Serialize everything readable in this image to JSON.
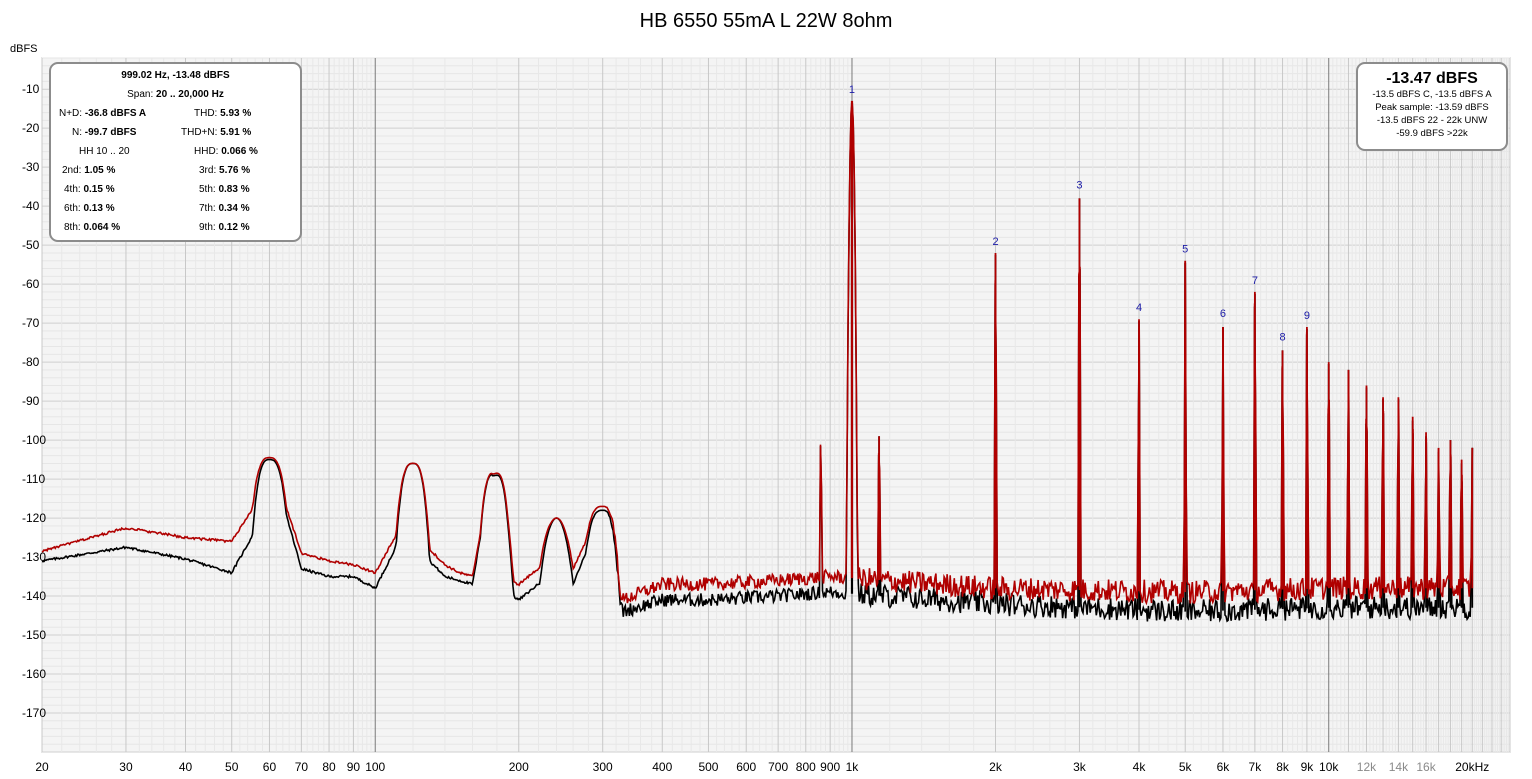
{
  "chart_data": {
    "type": "line",
    "title": "HB 6550 55mA L 22W 8ohm",
    "ylabel": "dBFS",
    "xlabel": "",
    "xscale": "log",
    "xlim": [
      20,
      24000
    ],
    "ylim": [
      -180,
      -2
    ],
    "grid": true,
    "y_ticks": [
      -10,
      -20,
      -30,
      -40,
      -50,
      -60,
      -70,
      -80,
      -90,
      -100,
      -110,
      -120,
      -130,
      -140,
      -150,
      -160,
      -170
    ],
    "x_ticks": [
      {
        "v": 20,
        "label": "20"
      },
      {
        "v": 30,
        "label": "30"
      },
      {
        "v": 40,
        "label": "40"
      },
      {
        "v": 50,
        "label": "50"
      },
      {
        "v": 60,
        "label": "60"
      },
      {
        "v": 70,
        "label": "70"
      },
      {
        "v": 80,
        "label": "80"
      },
      {
        "v": 90,
        "label": "90"
      },
      {
        "v": 100,
        "label": "100"
      },
      {
        "v": 200,
        "label": "200"
      },
      {
        "v": 300,
        "label": "300"
      },
      {
        "v": 400,
        "label": "400"
      },
      {
        "v": 500,
        "label": "500"
      },
      {
        "v": 600,
        "label": "600"
      },
      {
        "v": 700,
        "label": "700"
      },
      {
        "v": 800,
        "label": "800"
      },
      {
        "v": 900,
        "label": "900"
      },
      {
        "v": 1000,
        "label": "1k"
      },
      {
        "v": 2000,
        "label": "2k"
      },
      {
        "v": 3000,
        "label": "3k"
      },
      {
        "v": 4000,
        "label": "4k"
      },
      {
        "v": 5000,
        "label": "5k"
      },
      {
        "v": 6000,
        "label": "6k"
      },
      {
        "v": 7000,
        "label": "7k"
      },
      {
        "v": 8000,
        "label": "8k"
      },
      {
        "v": 9000,
        "label": "9k"
      },
      {
        "v": 10000,
        "label": "10k"
      },
      {
        "v": 12000,
        "label": "12k"
      },
      {
        "v": 14000,
        "label": "14k"
      },
      {
        "v": 16000,
        "label": "16k"
      },
      {
        "v": 20000,
        "label": "20kHz"
      }
    ],
    "series": [
      {
        "color": "#000000",
        "floor": [
          [
            20,
            -131
          ],
          [
            30,
            -127.5
          ],
          [
            40,
            -130.5
          ],
          [
            50,
            -134
          ],
          [
            55,
            -125
          ],
          [
            60,
            -105
          ],
          [
            65,
            -119
          ],
          [
            70,
            -133
          ],
          [
            80,
            -135
          ],
          [
            90,
            -135
          ],
          [
            100,
            -138
          ],
          [
            110,
            -128
          ],
          [
            120,
            -106
          ],
          [
            130,
            -131
          ],
          [
            140,
            -135
          ],
          [
            150,
            -136
          ],
          [
            160,
            -137
          ],
          [
            175,
            -108
          ],
          [
            190,
            -139
          ],
          [
            200,
            -141
          ],
          [
            230,
            -135
          ],
          [
            260,
            -137
          ],
          [
            300,
            -118
          ],
          [
            330,
            -144
          ],
          [
            400,
            -141
          ],
          [
            500,
            -141
          ],
          [
            700,
            -140
          ],
          [
            900,
            -139
          ],
          [
            2000,
            -142
          ],
          [
            5000,
            -144
          ],
          [
            10000,
            -143
          ],
          [
            20000,
            -143
          ]
        ],
        "peaks": [
          [
            60,
            -105
          ],
          [
            120,
            -106
          ],
          [
            180,
            -109
          ],
          [
            240,
            -120
          ],
          [
            300,
            -118
          ],
          [
            860,
            -99
          ],
          [
            1000,
            -13.5
          ],
          [
            1140,
            -99
          ],
          [
            2000,
            -52.5
          ],
          [
            3000,
            -38
          ],
          [
            4000,
            -69.5
          ],
          [
            5000,
            -54.5
          ],
          [
            6000,
            -71
          ],
          [
            7000,
            -62.5
          ],
          [
            8000,
            -77
          ],
          [
            9000,
            -71.5
          ],
          [
            10000,
            -80.5
          ],
          [
            11000,
            -82
          ],
          [
            12000,
            -86.5
          ],
          [
            13000,
            -89.5
          ],
          [
            14000,
            -89.5
          ],
          [
            15000,
            -95
          ],
          [
            16000,
            -99
          ],
          [
            17000,
            -103
          ],
          [
            18000,
            -100
          ],
          [
            19000,
            -106
          ],
          [
            20000,
            -102
          ]
        ]
      },
      {
        "color": "#b00000",
        "floor": [
          [
            20,
            -128.5
          ],
          [
            30,
            -122.5
          ],
          [
            40,
            -125
          ],
          [
            50,
            -126
          ],
          [
            55,
            -118
          ],
          [
            60,
            -104.5
          ],
          [
            65,
            -117
          ],
          [
            70,
            -129
          ],
          [
            80,
            -131
          ],
          [
            90,
            -132
          ],
          [
            100,
            -134
          ],
          [
            110,
            -125
          ],
          [
            120,
            -106
          ],
          [
            130,
            -128
          ],
          [
            140,
            -132
          ],
          [
            150,
            -134
          ],
          [
            160,
            -135
          ],
          [
            175,
            -108.5
          ],
          [
            190,
            -136
          ],
          [
            200,
            -137
          ],
          [
            230,
            -131
          ],
          [
            260,
            -133
          ],
          [
            300,
            -117
          ],
          [
            330,
            -141
          ],
          [
            400,
            -137
          ],
          [
            500,
            -137
          ],
          [
            700,
            -136
          ],
          [
            900,
            -135
          ],
          [
            2000,
            -138
          ],
          [
            5000,
            -139
          ],
          [
            10000,
            -138
          ],
          [
            20000,
            -138
          ]
        ],
        "peaks": [
          [
            60,
            -104.5
          ],
          [
            120,
            -106
          ],
          [
            180,
            -108.5
          ],
          [
            240,
            -120
          ],
          [
            300,
            -117
          ],
          [
            860,
            -99
          ],
          [
            1000,
            -13
          ],
          [
            1140,
            -99
          ],
          [
            2000,
            -52
          ],
          [
            3000,
            -38
          ],
          [
            4000,
            -69
          ],
          [
            5000,
            -54
          ],
          [
            6000,
            -71
          ],
          [
            7000,
            -62
          ],
          [
            8000,
            -77
          ],
          [
            9000,
            -71
          ],
          [
            10000,
            -80
          ],
          [
            11000,
            -82
          ],
          [
            12000,
            -86
          ],
          [
            13000,
            -89
          ],
          [
            14000,
            -89
          ],
          [
            15000,
            -94
          ],
          [
            16000,
            -98
          ],
          [
            17000,
            -102
          ],
          [
            18000,
            -100
          ],
          [
            19000,
            -105
          ],
          [
            20000,
            -102
          ]
        ]
      }
    ],
    "harmonic_markers": [
      {
        "label": "1",
        "x": 1000,
        "y": -13.5
      },
      {
        "label": "2",
        "x": 2000,
        "y": -52.5
      },
      {
        "label": "3",
        "x": 3000,
        "y": -38
      },
      {
        "label": "4",
        "x": 4000,
        "y": -69.5
      },
      {
        "label": "5",
        "x": 5000,
        "y": -54.5
      },
      {
        "label": "6",
        "x": 6000,
        "y": -71
      },
      {
        "label": "7",
        "x": 7000,
        "y": -62.5
      },
      {
        "label": "8",
        "x": 8000,
        "y": -77
      },
      {
        "label": "9",
        "x": 9000,
        "y": -71.5
      }
    ]
  },
  "stats": {
    "header": "999.02 Hz, -13.48 dBFS",
    "span_label": "Span:",
    "span": "20 .. 20,000 Hz",
    "nd_label": "N+D:",
    "nd": "-36.8 dBFS A",
    "thd_label": "THD:",
    "thd": "5.93 %",
    "n_label": "N:",
    "n": "-99.7 dBFS",
    "thdn_label": "THD+N:",
    "thdn": "5.91 %",
    "hh_label": "HH 10 .. 20",
    "hhd_label": "HHD:",
    "hhd": "0.066 %",
    "h2_label": "2nd:",
    "h2": "1.05 %",
    "h3_label": "3rd:",
    "h3": "5.76 %",
    "h4_label": "4th:",
    "h4": "0.15 %",
    "h5_label": "5th:",
    "h5": "0.83 %",
    "h6_label": "6th:",
    "h6": "0.13 %",
    "h7_label": "7th:",
    "h7": "0.34 %",
    "h8_label": "8th:",
    "h8": "0.064 %",
    "h9_label": "9th:",
    "h9": "0.12 %"
  },
  "level": {
    "main": "-13.47 dBFS",
    "line1": "-13.5 dBFS C, -13.5 dBFS A",
    "line2": "Peak sample: -13.59 dBFS",
    "line3": "-13.5 dBFS 22 - 22k UNW",
    "line4": "-59.9 dBFS >22k"
  }
}
